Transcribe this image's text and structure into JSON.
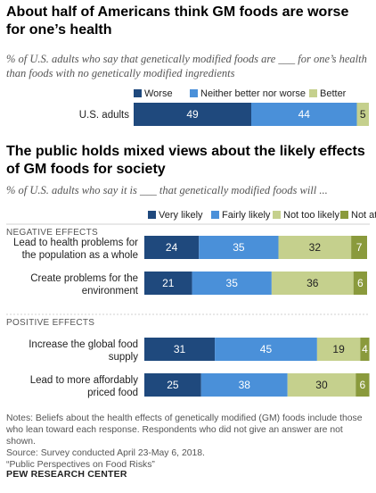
{
  "chart_data": [
    {
      "type": "bar",
      "orientation": "horizontal",
      "stacked": true,
      "title": "About half of Americans think GM foods are worse for one’s health",
      "subtitle": "% of U.S. adults who say that genetically modified foods are ___ for one’s health than foods with no genetically modified ingredients",
      "categories": [
        "U.S. adults"
      ],
      "series": [
        {
          "name": "Worse",
          "values": [
            49
          ]
        },
        {
          "name": "Neither better nor worse",
          "values": [
            44
          ]
        },
        {
          "name": "Better",
          "values": [
            5
          ]
        }
      ],
      "legend_position": "top"
    },
    {
      "type": "bar",
      "orientation": "horizontal",
      "stacked": true,
      "title": "The public holds mixed views about the likely effects of GM foods for society",
      "subtitle": "% of U.S. adults who say it is ___ that genetically modified foods will ...",
      "groups": [
        {
          "label": "NEGATIVE EFFECTS",
          "categories": [
            "Lead to health problems for the population as a whole",
            "Create problems for the environment"
          ]
        },
        {
          "label": "POSITIVE EFFECTS",
          "categories": [
            "Increase the global food supply",
            "Lead to more affordably priced food"
          ]
        }
      ],
      "categories": [
        "Lead to health problems for the population as a whole",
        "Create problems for the environment",
        "Increase the global food supply",
        "Lead to more affordably priced food"
      ],
      "series": [
        {
          "name": "Very likely",
          "values": [
            24,
            21,
            31,
            25
          ]
        },
        {
          "name": "Fairly likely",
          "values": [
            35,
            35,
            45,
            38
          ]
        },
        {
          "name": "Not too likely",
          "values": [
            32,
            36,
            19,
            30
          ]
        },
        {
          "name": "Not at all likely",
          "values": [
            7,
            6,
            4,
            6
          ]
        }
      ],
      "legend_position": "top"
    }
  ],
  "colors": {
    "dark_blue": "#1f497d",
    "mid_blue": "#4a90d9",
    "light_olive": "#c5d08d",
    "olive": "#8a9a3c"
  },
  "notes": "Notes: Beliefs about the health effects of genetically modified (GM) foods include those who lean toward each response. Respondents who did not give an answer are not shown.",
  "source": "Source: Survey conducted April 23-May 6, 2018.",
  "report": "“Public Perspectives on Food Risks”",
  "brand": "PEW RESEARCH CENTER"
}
